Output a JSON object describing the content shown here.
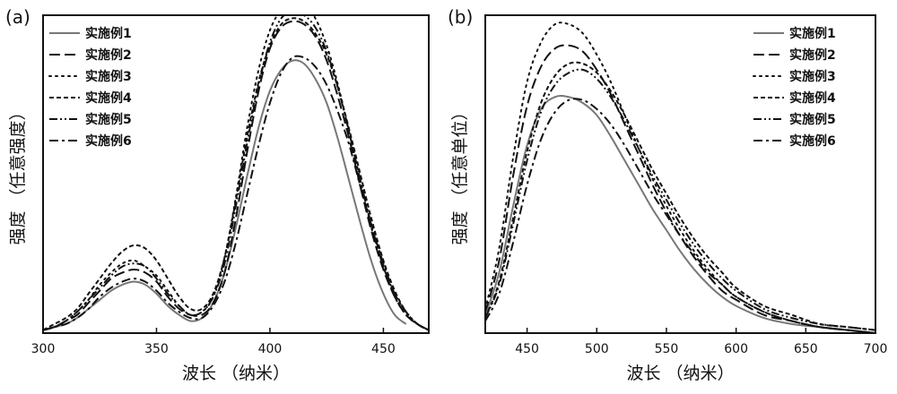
{
  "chart_data": [
    {
      "type": "line",
      "panel_label": "(a)",
      "xlabel": "波长 （纳米）",
      "ylabel": "强度 （任意强度）",
      "xlim": [
        300,
        470
      ],
      "xticks": [
        300,
        350,
        400,
        450
      ],
      "yticks_visible": false,
      "ylim": [
        0,
        1.05
      ],
      "legend_position": "top-left",
      "series": [
        {
          "name": "实施例1",
          "style": "solid",
          "color": "#777777",
          "x": [
            300,
            305,
            310,
            315,
            320,
            325,
            330,
            335,
            340,
            345,
            350,
            355,
            360,
            365,
            370,
            375,
            380,
            385,
            390,
            395,
            400,
            405,
            410,
            415,
            420,
            425,
            430,
            435,
            440,
            445,
            450,
            455,
            460
          ],
          "y": [
            0.01,
            0.02,
            0.03,
            0.05,
            0.08,
            0.11,
            0.14,
            0.16,
            0.17,
            0.16,
            0.13,
            0.09,
            0.06,
            0.04,
            0.05,
            0.1,
            0.2,
            0.35,
            0.52,
            0.68,
            0.8,
            0.87,
            0.9,
            0.89,
            0.84,
            0.76,
            0.64,
            0.5,
            0.36,
            0.23,
            0.13,
            0.06,
            0.03
          ]
        },
        {
          "name": "实施例2",
          "style": "dash",
          "color": "#111111",
          "x": [
            300,
            305,
            310,
            315,
            320,
            325,
            330,
            335,
            340,
            345,
            350,
            355,
            360,
            365,
            370,
            375,
            380,
            385,
            390,
            395,
            400,
            405,
            410,
            415,
            420,
            425,
            430,
            435,
            440,
            445,
            450,
            455,
            460,
            465,
            470
          ],
          "y": [
            0.01,
            0.02,
            0.04,
            0.06,
            0.1,
            0.14,
            0.18,
            0.2,
            0.21,
            0.2,
            0.17,
            0.12,
            0.08,
            0.06,
            0.06,
            0.1,
            0.2,
            0.38,
            0.6,
            0.8,
            0.94,
            1.01,
            1.03,
            1.02,
            0.98,
            0.9,
            0.78,
            0.64,
            0.48,
            0.33,
            0.21,
            0.12,
            0.06,
            0.03,
            0.01
          ]
        },
        {
          "name": "实施例3",
          "style": "dot",
          "color": "#111111",
          "x": [
            300,
            305,
            310,
            315,
            320,
            325,
            330,
            335,
            340,
            345,
            350,
            355,
            360,
            365,
            370,
            375,
            380,
            385,
            390,
            395,
            400,
            405,
            410,
            415,
            420,
            425,
            430,
            435,
            440,
            445,
            450,
            455,
            460,
            465,
            470
          ],
          "y": [
            0.01,
            0.02,
            0.04,
            0.07,
            0.11,
            0.16,
            0.2,
            0.23,
            0.24,
            0.22,
            0.19,
            0.14,
            0.09,
            0.06,
            0.07,
            0.12,
            0.25,
            0.45,
            0.68,
            0.87,
            1.0,
            1.07,
            1.1,
            1.09,
            1.04,
            0.95,
            0.82,
            0.66,
            0.5,
            0.34,
            0.22,
            0.12,
            0.06,
            0.03,
            0.01
          ]
        },
        {
          "name": "实施例4",
          "style": "shortdash",
          "color": "#111111",
          "x": [
            300,
            305,
            310,
            315,
            320,
            325,
            330,
            335,
            340,
            345,
            350,
            355,
            360,
            365,
            370,
            375,
            380,
            385,
            390,
            395,
            400,
            405,
            410,
            415,
            420,
            425,
            430,
            435,
            440,
            445,
            450,
            455,
            460,
            465,
            470
          ],
          "y": [
            0.01,
            0.03,
            0.05,
            0.08,
            0.13,
            0.18,
            0.23,
            0.27,
            0.29,
            0.28,
            0.24,
            0.18,
            0.12,
            0.08,
            0.08,
            0.13,
            0.25,
            0.44,
            0.65,
            0.83,
            0.95,
            1.02,
            1.04,
            1.03,
            0.99,
            0.92,
            0.81,
            0.67,
            0.52,
            0.37,
            0.24,
            0.14,
            0.07,
            0.03,
            0.01
          ]
        },
        {
          "name": "实施例5",
          "style": "dashdotdot",
          "color": "#111111",
          "x": [
            300,
            305,
            310,
            315,
            320,
            325,
            330,
            335,
            340,
            345,
            350,
            355,
            360,
            365,
            370,
            375,
            380,
            385,
            390,
            395,
            400,
            405,
            410,
            415,
            420,
            425,
            430,
            435,
            440,
            445,
            450,
            455,
            460,
            465,
            470
          ],
          "y": [
            0.01,
            0.02,
            0.04,
            0.07,
            0.11,
            0.15,
            0.19,
            0.22,
            0.23,
            0.22,
            0.18,
            0.13,
            0.09,
            0.06,
            0.07,
            0.12,
            0.23,
            0.42,
            0.63,
            0.82,
            0.96,
            1.04,
            1.06,
            1.05,
            1.01,
            0.93,
            0.81,
            0.66,
            0.5,
            0.35,
            0.22,
            0.13,
            0.07,
            0.03,
            0.01
          ]
        },
        {
          "name": "实施例6",
          "style": "dashdot",
          "color": "#111111",
          "x": [
            300,
            305,
            310,
            315,
            320,
            325,
            330,
            335,
            340,
            345,
            350,
            355,
            360,
            365,
            370,
            375,
            380,
            385,
            390,
            395,
            400,
            405,
            410,
            415,
            420,
            425,
            430,
            435,
            440,
            445,
            450,
            455,
            460,
            465,
            470
          ],
          "y": [
            0.01,
            0.02,
            0.03,
            0.05,
            0.08,
            0.12,
            0.15,
            0.17,
            0.18,
            0.17,
            0.14,
            0.1,
            0.07,
            0.05,
            0.05,
            0.09,
            0.17,
            0.3,
            0.46,
            0.62,
            0.76,
            0.86,
            0.91,
            0.91,
            0.88,
            0.82,
            0.73,
            0.62,
            0.48,
            0.35,
            0.23,
            0.13,
            0.07,
            0.03,
            0.01
          ]
        }
      ]
    },
    {
      "type": "line",
      "panel_label": "(b)",
      "xlabel": "波长 （纳米）",
      "ylabel": "强度 （任意单位）",
      "xlim": [
        420,
        700
      ],
      "xticks": [
        450,
        500,
        550,
        600,
        650,
        700
      ],
      "yticks_visible": false,
      "ylim": [
        0,
        1.05
      ],
      "legend_position": "top-right",
      "series": [
        {
          "name": "实施例1",
          "style": "solid",
          "color": "#777777",
          "x": [
            420,
            430,
            440,
            450,
            460,
            470,
            480,
            490,
            500,
            510,
            520,
            530,
            540,
            550,
            560,
            570,
            580,
            590,
            600,
            620,
            640,
            660,
            680,
            700
          ],
          "y": [
            0.06,
            0.2,
            0.42,
            0.62,
            0.74,
            0.78,
            0.78,
            0.76,
            0.72,
            0.65,
            0.57,
            0.49,
            0.41,
            0.34,
            0.27,
            0.21,
            0.16,
            0.12,
            0.09,
            0.05,
            0.03,
            0.02,
            0.01,
            0.0
          ]
        },
        {
          "name": "实施例2",
          "style": "dash",
          "color": "#111111",
          "x": [
            420,
            430,
            440,
            450,
            460,
            470,
            480,
            490,
            500,
            510,
            520,
            530,
            540,
            550,
            560,
            570,
            580,
            590,
            600,
            620,
            640,
            660,
            680,
            700
          ],
          "y": [
            0.07,
            0.24,
            0.52,
            0.75,
            0.88,
            0.94,
            0.95,
            0.93,
            0.87,
            0.79,
            0.69,
            0.59,
            0.49,
            0.4,
            0.32,
            0.25,
            0.19,
            0.14,
            0.11,
            0.06,
            0.04,
            0.02,
            0.01,
            0.0
          ]
        },
        {
          "name": "实施例3",
          "style": "dot",
          "color": "#111111",
          "x": [
            420,
            430,
            440,
            450,
            460,
            470,
            480,
            490,
            500,
            510,
            520,
            530,
            540,
            550,
            560,
            570,
            580,
            590,
            600,
            620,
            640,
            660,
            680,
            700
          ],
          "y": [
            0.08,
            0.28,
            0.58,
            0.83,
            0.96,
            1.02,
            1.02,
            0.99,
            0.92,
            0.83,
            0.72,
            0.61,
            0.51,
            0.42,
            0.34,
            0.27,
            0.21,
            0.16,
            0.12,
            0.07,
            0.04,
            0.02,
            0.01,
            0.0
          ]
        },
        {
          "name": "实施例4",
          "style": "shortdash",
          "color": "#111111",
          "x": [
            420,
            430,
            440,
            450,
            460,
            470,
            480,
            490,
            500,
            510,
            520,
            530,
            540,
            550,
            560,
            570,
            580,
            590,
            600,
            620,
            640,
            660,
            680,
            700
          ],
          "y": [
            0.05,
            0.17,
            0.38,
            0.6,
            0.76,
            0.85,
            0.89,
            0.89,
            0.86,
            0.8,
            0.72,
            0.63,
            0.54,
            0.46,
            0.38,
            0.31,
            0.25,
            0.2,
            0.15,
            0.09,
            0.06,
            0.03,
            0.02,
            0.01
          ]
        },
        {
          "name": "实施例5",
          "style": "dashdotdot",
          "color": "#111111",
          "x": [
            420,
            430,
            440,
            450,
            460,
            470,
            480,
            490,
            500,
            510,
            520,
            530,
            540,
            550,
            560,
            570,
            580,
            590,
            600,
            620,
            640,
            660,
            680,
            700
          ],
          "y": [
            0.05,
            0.16,
            0.36,
            0.57,
            0.73,
            0.82,
            0.86,
            0.87,
            0.84,
            0.78,
            0.7,
            0.61,
            0.52,
            0.44,
            0.36,
            0.29,
            0.23,
            0.18,
            0.14,
            0.08,
            0.05,
            0.03,
            0.02,
            0.01
          ]
        },
        {
          "name": "实施例6",
          "style": "dashdot",
          "color": "#111111",
          "x": [
            420,
            430,
            440,
            450,
            460,
            470,
            480,
            490,
            500,
            510,
            520,
            530,
            540,
            550,
            560,
            570,
            580,
            590,
            600,
            620,
            640,
            660,
            680,
            700
          ],
          "y": [
            0.04,
            0.13,
            0.3,
            0.49,
            0.64,
            0.73,
            0.77,
            0.77,
            0.74,
            0.69,
            0.62,
            0.54,
            0.46,
            0.39,
            0.32,
            0.26,
            0.2,
            0.16,
            0.12,
            0.07,
            0.04,
            0.02,
            0.01,
            0.0
          ]
        }
      ]
    }
  ]
}
